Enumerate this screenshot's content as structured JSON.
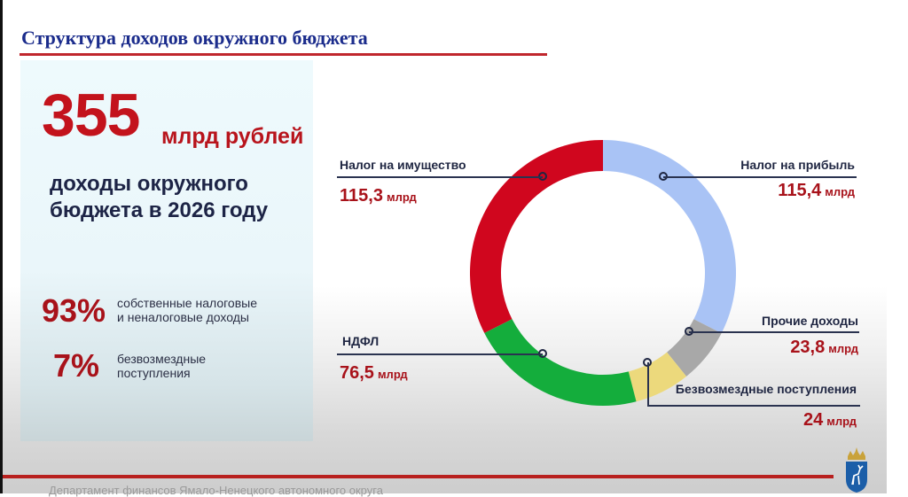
{
  "slide": {
    "title": "Структура доходов окружного бюджета",
    "footer": "Департамент финансов Ямало-Ненецкого автономного округа"
  },
  "summary": {
    "total_value": "355",
    "total_unit": "млрд рублей",
    "subtitle_line1": "доходы окружного",
    "subtitle_line2": "бюджета в 2026 году",
    "shares": [
      {
        "pct": "93%",
        "label_line1": "собственные налоговые",
        "label_line2": "и неналоговые доходы"
      },
      {
        "pct": "7%",
        "label_line1": "безвозмездные",
        "label_line2": "поступления"
      }
    ]
  },
  "labels": {
    "property": {
      "name": "Налог на имущество",
      "value": "115,3",
      "unit": "млрд"
    },
    "profit": {
      "name": "Налог на прибыль",
      "value": "115,4",
      "unit": "млрд"
    },
    "ndfl": {
      "name": "НДФЛ",
      "value": "76,5",
      "unit": "млрд"
    },
    "other": {
      "name": "Прочие доходы",
      "value": "23,8",
      "unit": "млрд"
    },
    "gratuitous": {
      "name": "Безвозмездные поступления",
      "value": "24",
      "unit": "млрд"
    }
  },
  "chart_data": {
    "type": "pie",
    "variant": "donut",
    "title": "Структура доходов окружного бюджета",
    "unit": "млрд рублей",
    "total": 355,
    "categories": [
      "Налог на прибыль",
      "Прочие доходы",
      "Безвозмездные поступления",
      "НДФЛ",
      "Налог на имущество"
    ],
    "values": [
      115.4,
      23.8,
      24,
      76.5,
      115.3
    ],
    "colors": [
      "#a9c3f5",
      "#a8a8a8",
      "#ecd97c",
      "#14ad3c",
      "#d0061e"
    ],
    "start_angle_deg": 0,
    "direction": "clockwise",
    "legend": "callout labels"
  },
  "colors": {
    "title": "#1b2c8c",
    "accent_red": "#c0262d",
    "value_red": "#a8121a",
    "text_dark": "#1f2642"
  }
}
